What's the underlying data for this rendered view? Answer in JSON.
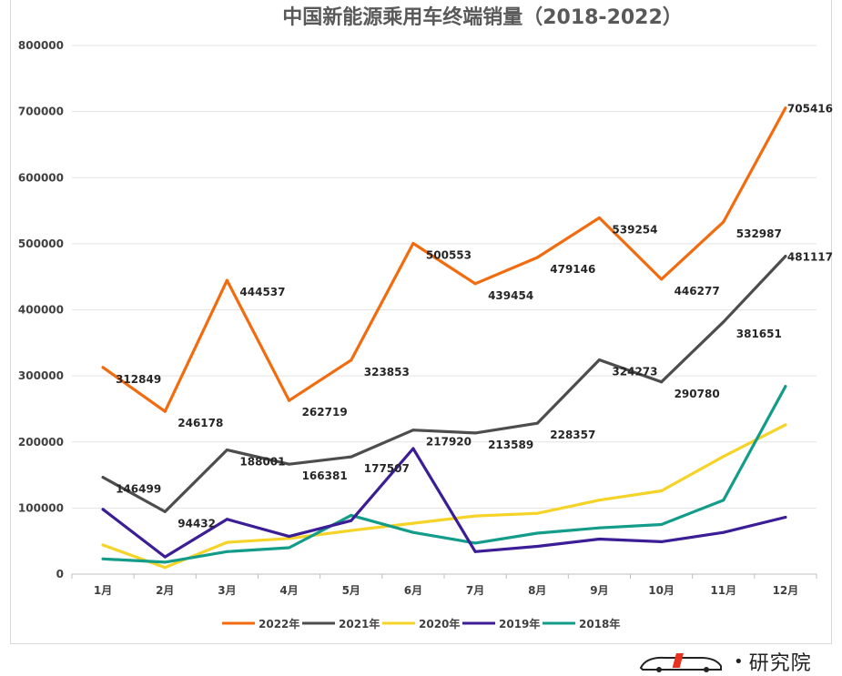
{
  "chart_data": {
    "type": "line",
    "title": "中国新能源乘用车终端销量（2018-2022）",
    "categories": [
      "1月",
      "2月",
      "3月",
      "4月",
      "5月",
      "6月",
      "7月",
      "8月",
      "9月",
      "10月",
      "11月",
      "12月"
    ],
    "ylim": [
      0,
      800000
    ],
    "yticks": [
      0,
      100000,
      200000,
      300000,
      400000,
      500000,
      600000,
      700000,
      800000
    ],
    "grid": true,
    "legend_position": "bottom",
    "series": [
      {
        "name": "2022年",
        "color": "#F26B0F",
        "values": [
          312849,
          246178,
          444537,
          262719,
          323853,
          500553,
          439454,
          479146,
          539254,
          446277,
          532987,
          705416
        ],
        "labels": [
          "312849",
          "246178",
          "444537",
          "262719",
          "323853",
          "500553",
          "439454",
          "479146",
          "539254",
          "446277",
          "532987",
          "705416"
        ]
      },
      {
        "name": "2021年",
        "color": "#4D4D4D",
        "values": [
          146499,
          94432,
          188001,
          166381,
          177507,
          217920,
          213589,
          228357,
          324273,
          290780,
          381651,
          481117
        ],
        "labels": [
          "146499",
          "94432",
          "188001",
          "166381",
          "177507",
          "217920",
          "213589",
          "228357",
          "324273",
          "290780",
          "381651",
          "481117"
        ]
      },
      {
        "name": "2020年",
        "color": "#F5D327",
        "values": [
          44000,
          10000,
          48000,
          54000,
          66000,
          77000,
          88000,
          92000,
          112000,
          126000,
          178000,
          226000
        ],
        "labels": []
      },
      {
        "name": "2019年",
        "color": "#3B1D96",
        "values": [
          98000,
          26000,
          83000,
          57000,
          81000,
          190000,
          34000,
          42000,
          53000,
          49000,
          63000,
          86000
        ],
        "labels": []
      },
      {
        "name": "2018年",
        "color": "#139C8A",
        "values": [
          23000,
          18000,
          34000,
          40000,
          89000,
          63000,
          47000,
          62000,
          70000,
          75000,
          112000,
          284000
        ],
        "labels": []
      }
    ]
  },
  "watermark": {
    "text": "研究院",
    "dot": "•"
  }
}
